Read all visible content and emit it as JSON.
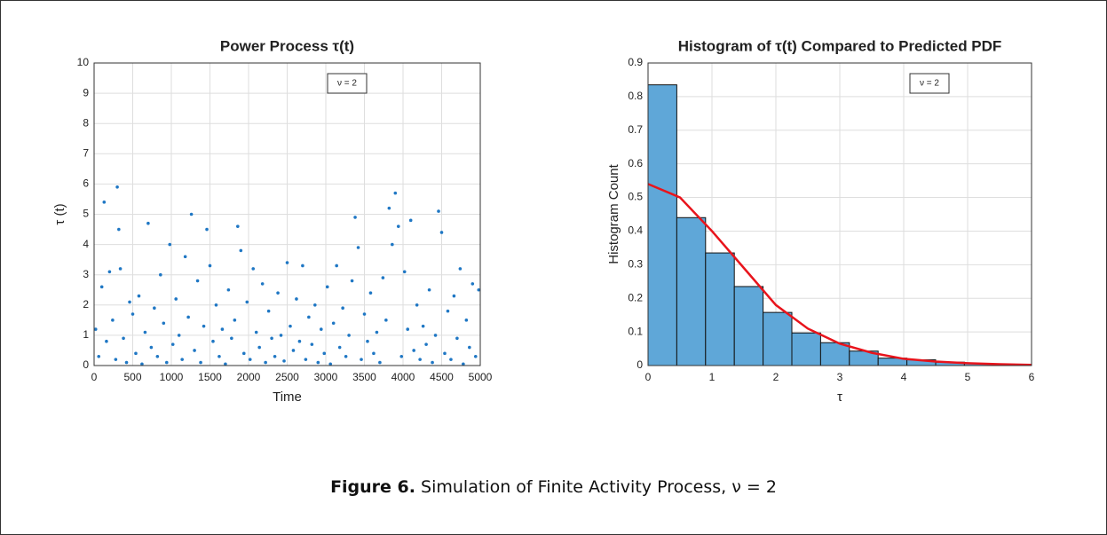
{
  "chart_data": [
    {
      "type": "scatter",
      "title": "Power Process τ(t)",
      "x_label": "Time",
      "y_label": "τ (t)",
      "annotation": "ν = 2",
      "color": "#1f77c4",
      "grid": true,
      "xlim": [
        0,
        5000
      ],
      "xticks": [
        0,
        500,
        1000,
        1500,
        2000,
        2500,
        3000,
        3500,
        4000,
        4500,
        5000
      ],
      "ylim": [
        0,
        10
      ],
      "yticks": [
        0,
        1,
        2,
        3,
        4,
        5,
        6,
        7,
        8,
        9,
        10
      ],
      "x": [
        20,
        60,
        100,
        130,
        160,
        200,
        240,
        280,
        300,
        320,
        340,
        380,
        420,
        460,
        500,
        540,
        580,
        620,
        660,
        700,
        740,
        780,
        820,
        860,
        900,
        940,
        980,
        1020,
        1060,
        1100,
        1140,
        1180,
        1220,
        1260,
        1300,
        1340,
        1380,
        1420,
        1460,
        1500,
        1540,
        1580,
        1620,
        1660,
        1700,
        1740,
        1780,
        1820,
        1860,
        1900,
        1940,
        1980,
        2020,
        2060,
        2100,
        2140,
        2180,
        2220,
        2260,
        2300,
        2340,
        2380,
        2420,
        2460,
        2500,
        2540,
        2580,
        2620,
        2660,
        2700,
        2740,
        2780,
        2820,
        2860,
        2900,
        2940,
        2980,
        3020,
        3060,
        3100,
        3140,
        3180,
        3220,
        3260,
        3300,
        3340,
        3380,
        3420,
        3460,
        3500,
        3540,
        3580,
        3620,
        3660,
        3700,
        3740,
        3780,
        3820,
        3860,
        3900,
        3940,
        3980,
        4020,
        4060,
        4100,
        4140,
        4180,
        4220,
        4260,
        4300,
        4340,
        4380,
        4420,
        4460,
        4500,
        4540,
        4580,
        4620,
        4660,
        4700,
        4740,
        4780,
        4820,
        4860,
        4900,
        4940,
        4980
      ],
      "values": [
        1.2,
        0.3,
        2.6,
        5.4,
        0.8,
        3.1,
        1.5,
        0.2,
        5.9,
        4.5,
        3.2,
        0.9,
        0.1,
        2.1,
        1.7,
        0.4,
        2.3,
        0.05,
        1.1,
        4.7,
        0.6,
        1.9,
        0.3,
        3.0,
        1.4,
        0.1,
        4.0,
        0.7,
        2.2,
        1.0,
        0.2,
        3.6,
        1.6,
        5.0,
        0.5,
        2.8,
        0.1,
        1.3,
        4.5,
        3.3,
        0.8,
        2.0,
        0.3,
        1.2,
        0.05,
        2.5,
        0.9,
        1.5,
        4.6,
        3.8,
        0.4,
        2.1,
        0.2,
        3.2,
        1.1,
        0.6,
        2.7,
        0.1,
        1.8,
        0.9,
        0.3,
        2.4,
        1.0,
        0.15,
        3.4,
        1.3,
        0.5,
        2.2,
        0.8,
        3.3,
        0.2,
        1.6,
        0.7,
        2.0,
        0.1,
        1.2,
        0.4,
        2.6,
        0.05,
        1.4,
        3.3,
        0.6,
        1.9,
        0.3,
        1.0,
        2.8,
        4.9,
        3.9,
        0.2,
        1.7,
        0.8,
        2.4,
        0.4,
        1.1,
        0.1,
        2.9,
        1.5,
        5.2,
        4.0,
        5.7,
        4.6,
        0.3,
        3.1,
        1.2,
        4.8,
        0.5,
        2.0,
        0.2,
        1.3,
        0.7,
        2.5,
        0.1,
        1.0,
        5.1,
        4.4,
        0.4,
        1.8,
        0.2,
        2.3,
        0.9,
        3.2,
        0.05,
        1.5,
        0.6,
        2.7,
        0.3,
        2.5
      ]
    },
    {
      "type": "histogram",
      "title": "Histogram of τ(t) Compared to Predicted PDF",
      "x_label": "τ",
      "y_label": "Histogram Count",
      "annotation": "ν = 2",
      "color": "#5fa7d8",
      "grid": true,
      "xlim": [
        0,
        6
      ],
      "xticks": [
        0,
        1,
        2,
        3,
        4,
        5,
        6
      ],
      "ylim": [
        0,
        0.9
      ],
      "yticks": [
        0,
        0.1,
        0.2,
        0.3,
        0.4,
        0.5,
        0.6,
        0.7,
        0.8,
        0.9
      ],
      "bins": [
        0,
        0.45,
        0.9,
        1.35,
        1.8,
        2.25,
        2.7,
        3.15,
        3.6,
        4.05,
        4.5,
        4.95,
        5.4,
        5.85
      ],
      "counts": [
        0.835,
        0.44,
        0.335,
        0.235,
        0.158,
        0.097,
        0.068,
        0.043,
        0.022,
        0.017,
        0.01,
        0.006,
        0.004
      ],
      "curve": {
        "color": "#e8141c",
        "x": [
          0,
          0.5,
          1,
          1.5,
          2,
          2.5,
          3,
          3.5,
          4,
          4.5,
          5,
          5.5,
          6
        ],
        "values": [
          0.54,
          0.5,
          0.4,
          0.29,
          0.18,
          0.11,
          0.065,
          0.038,
          0.02,
          0.012,
          0.007,
          0.004,
          0.002
        ]
      }
    }
  ],
  "caption": {
    "label": "Figure 6.",
    "text": "Simulation of Finite Activity Process, ν = 2"
  }
}
